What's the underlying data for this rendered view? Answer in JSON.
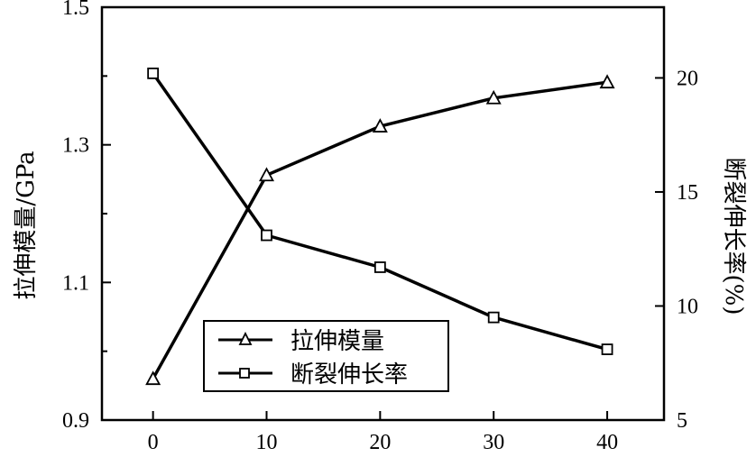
{
  "chart_data": {
    "type": "line",
    "x": [
      0,
      10,
      20,
      30,
      40
    ],
    "x_ticks": [
      "0",
      "10",
      "20",
      "30",
      "40"
    ],
    "xlim": [
      -4.5,
      45
    ],
    "y_left": {
      "label": "拉伸模量/GPa",
      "lim": [
        0.9,
        1.5
      ],
      "ticks": [
        "0.9",
        "1.1",
        "1.3",
        "1.5"
      ]
    },
    "y_right": {
      "label": "断裂伸长率(%)",
      "lim": [
        5,
        23.1
      ],
      "ticks": [
        "5",
        "10",
        "15",
        "20"
      ]
    },
    "series": [
      {
        "name": "拉伸模量",
        "axis": "left",
        "marker": "triangle",
        "values": [
          0.96,
          1.256,
          1.327,
          1.368,
          1.391
        ]
      },
      {
        "name": "断裂伸长率",
        "axis": "right",
        "marker": "square",
        "values": [
          20.2,
          13.1,
          11.7,
          9.5,
          8.1
        ]
      }
    ],
    "legend_position": "lower-left",
    "grid": false
  }
}
